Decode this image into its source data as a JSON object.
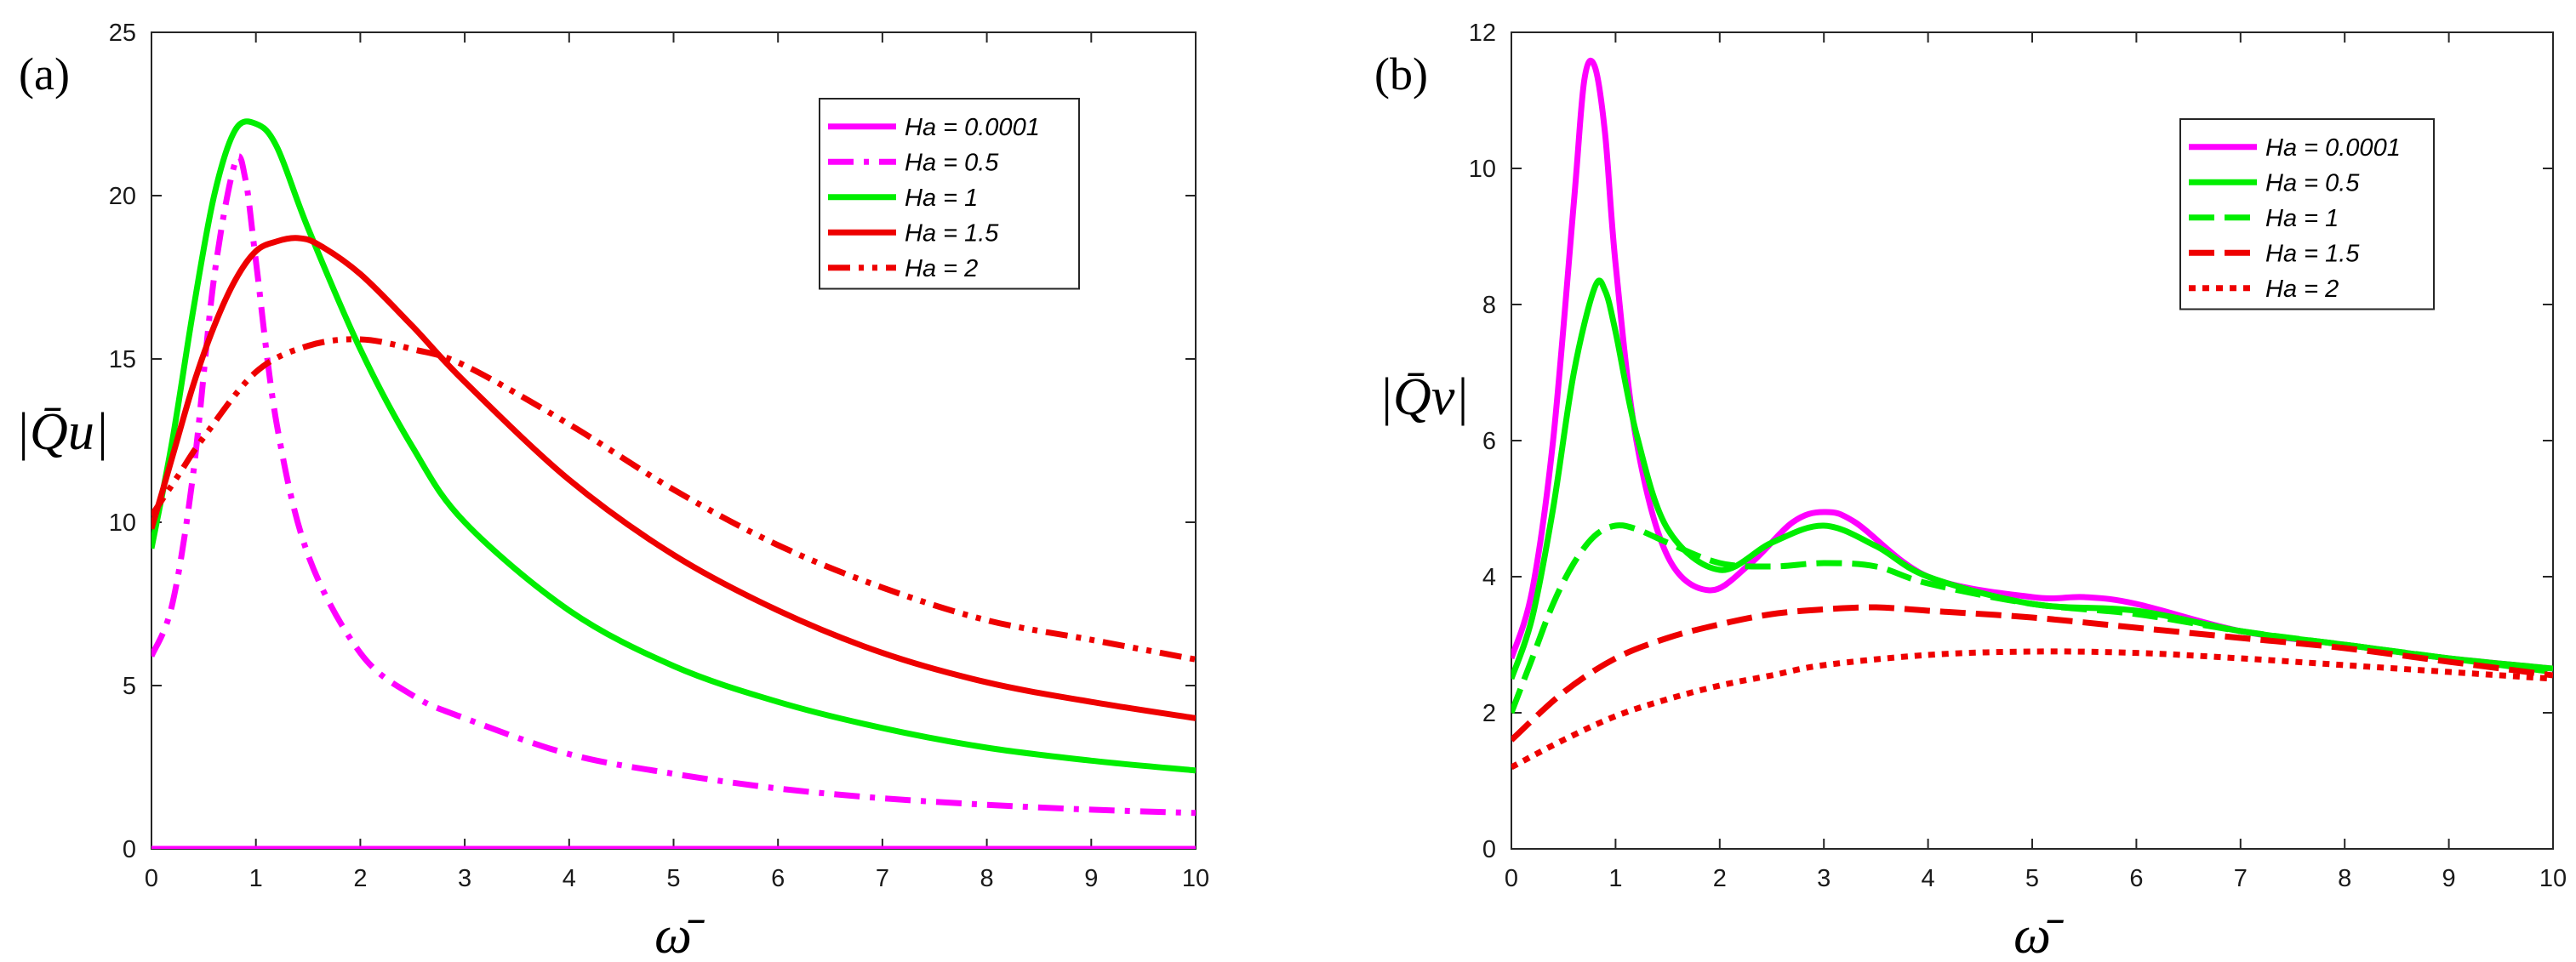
{
  "chart_data": [
    {
      "type": "line",
      "panel_label": "(a)",
      "xlabel": "ω̄",
      "ylabel": "|Q̄u|",
      "xlim": [
        0,
        10
      ],
      "ylim": [
        0,
        25
      ],
      "xticks": [
        "0",
        "1",
        "2",
        "3",
        "4",
        "5",
        "6",
        "7",
        "8",
        "9",
        "10"
      ],
      "yticks": [
        "0",
        "5",
        "10",
        "15",
        "20",
        "25"
      ],
      "legend_position": "top-right",
      "series": [
        {
          "name": "Ha = 0.0001",
          "color": "#ff00ff",
          "dash": "solid",
          "x": [
            0,
            1,
            2,
            3,
            4,
            5,
            6,
            7,
            8,
            9,
            10
          ],
          "y": [
            0,
            0,
            0,
            0,
            0,
            0,
            0,
            0,
            0,
            0,
            0
          ]
        },
        {
          "name": "Ha = 0.5",
          "color": "#ff00ff",
          "dash": "dashdot",
          "x": [
            0,
            0.2,
            0.4,
            0.6,
            0.8,
            0.9,
            1.0,
            1.2,
            1.5,
            2.0,
            2.5,
            3,
            4,
            5,
            6,
            7,
            8,
            9,
            10
          ],
          "y": [
            5.9,
            7.5,
            11.5,
            17.5,
            21.0,
            20.5,
            18.0,
            13.0,
            9.0,
            6.0,
            4.7,
            4.0,
            2.9,
            2.3,
            1.85,
            1.55,
            1.35,
            1.2,
            1.1
          ]
        },
        {
          "name": "Ha = 1",
          "color": "#00ee00",
          "dash": "solid",
          "x": [
            0,
            0.2,
            0.4,
            0.6,
            0.8,
            1.0,
            1.2,
            1.5,
            2.0,
            2.5,
            3,
            4,
            5,
            6,
            7,
            8,
            9,
            10
          ],
          "y": [
            9.2,
            12.5,
            16.5,
            20.0,
            22.0,
            22.2,
            21.5,
            19.0,
            15.3,
            12.3,
            10.0,
            7.3,
            5.6,
            4.5,
            3.7,
            3.1,
            2.7,
            2.4
          ]
        },
        {
          "name": "Ha = 1.5",
          "color": "#ee0000",
          "dash": "solid",
          "x": [
            0,
            0.2,
            0.4,
            0.6,
            0.8,
            1.0,
            1.2,
            1.4,
            1.6,
            2.0,
            2.5,
            3,
            4,
            5,
            6,
            7,
            8,
            9,
            10
          ],
          "y": [
            9.8,
            12.0,
            14.2,
            16.0,
            17.4,
            18.3,
            18.6,
            18.7,
            18.5,
            17.6,
            16.0,
            14.3,
            11.3,
            9.0,
            7.3,
            6.0,
            5.1,
            4.5,
            4.0
          ]
        },
        {
          "name": "Ha = 2",
          "color": "#ee0000",
          "dash": "dashdotdot",
          "x": [
            0,
            0.25,
            0.5,
            1.0,
            1.5,
            2.0,
            2.5,
            3,
            4,
            5,
            6,
            7,
            8,
            9,
            10
          ],
          "y": [
            10.2,
            11.4,
            12.6,
            14.6,
            15.4,
            15.6,
            15.3,
            14.8,
            13.0,
            11.0,
            9.3,
            8.0,
            7.0,
            6.4,
            5.8
          ]
        }
      ]
    },
    {
      "type": "line",
      "panel_label": "(b)",
      "xlabel": "ω̄",
      "ylabel": "|Q̄v|",
      "xlim": [
        0,
        10
      ],
      "ylim": [
        0,
        12
      ],
      "xticks": [
        "0",
        "1",
        "2",
        "3",
        "4",
        "5",
        "6",
        "7",
        "8",
        "9",
        "10"
      ],
      "yticks": [
        "0",
        "2",
        "4",
        "6",
        "8",
        "10",
        "12"
      ],
      "legend_position": "top-right",
      "series": [
        {
          "name": "Ha = 0.0001",
          "color": "#ff00ff",
          "dash": "solid",
          "x": [
            0,
            0.2,
            0.4,
            0.6,
            0.7,
            0.8,
            0.9,
            1.0,
            1.2,
            1.5,
            1.9,
            2.3,
            2.7,
            3.0,
            3.3,
            4,
            5,
            5.5,
            6,
            7,
            8,
            9,
            10
          ],
          "y": [
            2.8,
            3.8,
            6.0,
            9.5,
            11.3,
            11.5,
            10.5,
            8.6,
            6.0,
            4.3,
            3.8,
            4.2,
            4.8,
            4.95,
            4.8,
            4.0,
            3.7,
            3.7,
            3.6,
            3.2,
            3.0,
            2.8,
            2.65
          ]
        },
        {
          "name": "Ha = 0.5",
          "color": "#00ee00",
          "dash": "solid",
          "x": [
            0,
            0.2,
            0.4,
            0.6,
            0.8,
            0.9,
            1.0,
            1.2,
            1.5,
            2.0,
            2.5,
            3.0,
            3.5,
            4,
            5,
            6,
            7,
            8,
            9,
            10
          ],
          "y": [
            2.5,
            3.4,
            5.0,
            7.0,
            8.25,
            8.2,
            7.6,
            6.1,
            4.7,
            4.1,
            4.5,
            4.75,
            4.45,
            4.0,
            3.6,
            3.5,
            3.2,
            3.0,
            2.8,
            2.65
          ]
        },
        {
          "name": "Ha = 1",
          "color": "#00ee00",
          "dash": "dashed",
          "x": [
            0,
            0.2,
            0.4,
            0.6,
            0.8,
            1.0,
            1.2,
            1.5,
            2.0,
            2.5,
            3.0,
            3.5,
            4,
            5,
            6,
            7,
            8,
            9,
            10
          ],
          "y": [
            2.0,
            2.8,
            3.6,
            4.2,
            4.6,
            4.75,
            4.7,
            4.5,
            4.2,
            4.15,
            4.2,
            4.15,
            3.9,
            3.6,
            3.45,
            3.2,
            3.0,
            2.8,
            2.6
          ]
        },
        {
          "name": "Ha = 1.5",
          "color": "#ee0000",
          "dash": "dashed",
          "x": [
            0,
            0.5,
            1.0,
            1.5,
            2.0,
            2.5,
            3.0,
            3.5,
            4,
            5,
            6,
            7,
            8,
            9,
            10
          ],
          "y": [
            1.6,
            2.3,
            2.8,
            3.1,
            3.3,
            3.45,
            3.52,
            3.55,
            3.5,
            3.4,
            3.25,
            3.1,
            2.95,
            2.75,
            2.55
          ]
        },
        {
          "name": "Ha = 2",
          "color": "#ee0000",
          "dash": "dotted",
          "x": [
            0,
            0.5,
            1.0,
            1.5,
            2.0,
            2.5,
            3.0,
            4,
            5,
            6,
            7,
            8,
            9,
            10
          ],
          "y": [
            1.2,
            1.6,
            1.95,
            2.2,
            2.4,
            2.55,
            2.7,
            2.85,
            2.9,
            2.88,
            2.8,
            2.7,
            2.6,
            2.5
          ]
        }
      ]
    }
  ]
}
